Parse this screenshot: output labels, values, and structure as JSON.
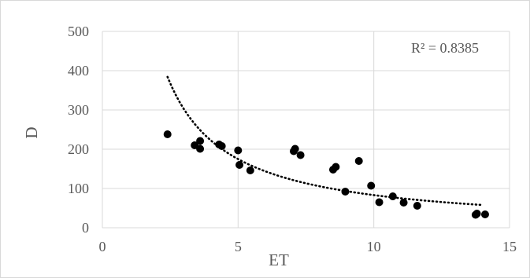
{
  "chart_data": {
    "type": "scatter",
    "xlabel": "ET",
    "ylabel": "D",
    "xlim": [
      0,
      15
    ],
    "ylim": [
      0,
      500
    ],
    "x_ticks": [
      "0",
      "5",
      "10",
      "15"
    ],
    "y_ticks": [
      "0",
      "100",
      "200",
      "300",
      "400",
      "500"
    ],
    "x_tick_values": [
      0,
      5,
      10,
      15
    ],
    "y_tick_values": [
      0,
      100,
      200,
      300,
      400,
      500
    ],
    "grid": true,
    "annotation": "R² = 0.8385",
    "trendline": {
      "style": "dotted",
      "kind": "power",
      "x_range": [
        2.4,
        14.0
      ]
    },
    "points": [
      {
        "x": 2.4,
        "y": 238
      },
      {
        "x": 3.4,
        "y": 210
      },
      {
        "x": 3.6,
        "y": 221
      },
      {
        "x": 3.6,
        "y": 201
      },
      {
        "x": 4.3,
        "y": 212
      },
      {
        "x": 4.4,
        "y": 208
      },
      {
        "x": 5.0,
        "y": 197
      },
      {
        "x": 5.05,
        "y": 160
      },
      {
        "x": 5.45,
        "y": 146
      },
      {
        "x": 7.05,
        "y": 195
      },
      {
        "x": 7.1,
        "y": 201
      },
      {
        "x": 7.3,
        "y": 185
      },
      {
        "x": 8.5,
        "y": 148
      },
      {
        "x": 8.6,
        "y": 155
      },
      {
        "x": 9.45,
        "y": 170
      },
      {
        "x": 8.95,
        "y": 92
      },
      {
        "x": 9.9,
        "y": 107
      },
      {
        "x": 10.2,
        "y": 65
      },
      {
        "x": 10.7,
        "y": 80
      },
      {
        "x": 11.1,
        "y": 64
      },
      {
        "x": 11.6,
        "y": 56
      },
      {
        "x": 13.75,
        "y": 33
      },
      {
        "x": 13.8,
        "y": 36
      },
      {
        "x": 14.1,
        "y": 34
      }
    ],
    "colors": {
      "marker": "#000000",
      "trendline": "#000000",
      "grid": "#d9d9d9",
      "text": "#595959"
    }
  }
}
